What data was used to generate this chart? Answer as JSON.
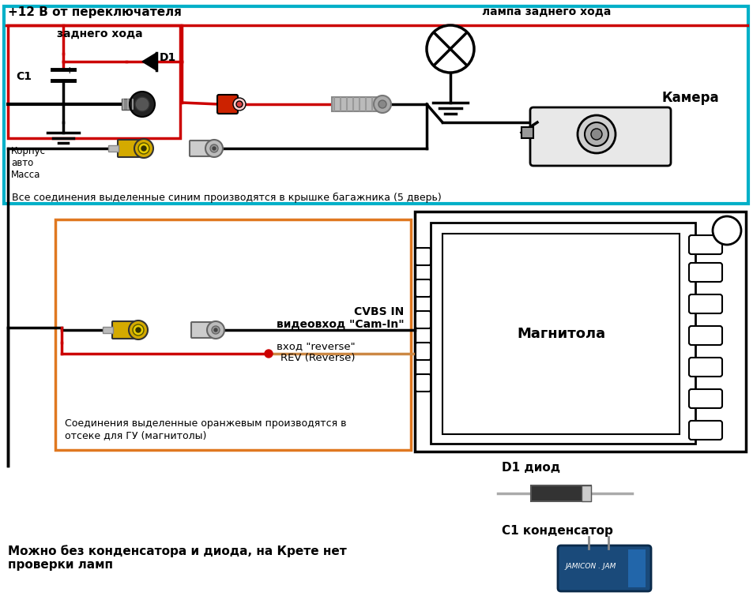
{
  "bg_color": "#f0f0f0",
  "wire_red": "#cc0000",
  "wire_black": "#111111",
  "top_box_color": "#00b0c8",
  "bottom_box_color": "#e07820",
  "text_main": "#000000",
  "title_top": "+12 В от переключателя",
  "title_lamp": "лампа заднего хода",
  "title_back": "заднего хода",
  "label_d1": "D1",
  "label_c1": "C1",
  "label_corpus": "Корпус\nавто\nМасса",
  "label_camera": "Камера",
  "label_magnit": "Магнитола",
  "label_cvbs": "CVBS IN\nвидеовход \"Cam-In\"",
  "label_reverse": "вход \"reverse\"\nREV (Reverse)",
  "note_top": "Все соединения выделенные синим производятся в крышке багажника (5 дверь)",
  "note_bottom": "Соединения выделенные оранжевым производятся в\nотсеке для ГУ (магнитолы)",
  "note_footer1": "Можно без конденсатора и диода, на Крете нет\nпроверки ламп",
  "label_d1_diode": "D1 диод",
  "label_c1_cap": "C1 конденсатор"
}
